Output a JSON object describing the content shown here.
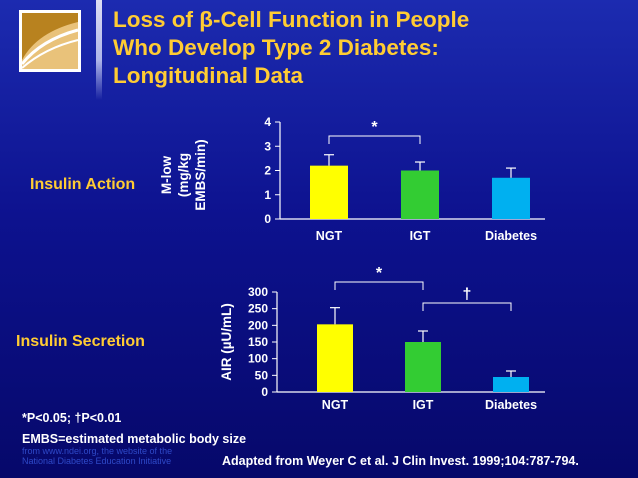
{
  "title": {
    "line1": "Loss of β-Cell Function in People",
    "line2": "Who Develop Type 2 Diabetes:",
    "line3": "Longitudinal Data"
  },
  "row_labels": {
    "action": "Insulin Action",
    "secretion": "Insulin Secretion"
  },
  "chart_data": [
    {
      "type": "bar",
      "categories": [
        "NGT",
        "IGT",
        "Diabetes"
      ],
      "values": [
        2.2,
        2.0,
        1.7
      ],
      "errors": [
        0.45,
        0.35,
        0.4
      ],
      "colors": [
        "#ffff00",
        "#33cc33",
        "#00b0f0"
      ],
      "ylabel": [
        "M-low",
        "(mg/kg",
        "EMBS/min)"
      ],
      "ylim": [
        0,
        4
      ],
      "yticks": [
        0,
        1,
        2,
        3,
        4
      ],
      "significance": [
        {
          "from": "NGT",
          "to": "IGT",
          "symbol": "*"
        }
      ]
    },
    {
      "type": "bar",
      "categories": [
        "NGT",
        "IGT",
        "Diabetes"
      ],
      "values": [
        203,
        150,
        45
      ],
      "errors": [
        50,
        33,
        18
      ],
      "colors": [
        "#ffff00",
        "#33cc33",
        "#00b0f0"
      ],
      "ylabel": [
        "AIR (µU/mL)"
      ],
      "ylim": [
        0,
        300
      ],
      "yticks": [
        0,
        50,
        100,
        150,
        200,
        250,
        300
      ],
      "significance": [
        {
          "from": "NGT",
          "to": "IGT",
          "symbol": "*"
        },
        {
          "from": "IGT",
          "to": "Diabetes",
          "symbol": "†"
        }
      ]
    }
  ],
  "footnotes": {
    "significance": "*P<0.05; †P<0.01",
    "embs": "EMBS=estimated metabolic body size"
  },
  "source": {
    "line1": "from www.ndei.org, the website of the",
    "line2": "National Diabetes Education Initiative"
  },
  "citation": "Adapted from Weyer C et al. J Clin Invest. 1999;104:787-794.",
  "colors": {
    "title": "#ffcc33",
    "background": "#0d128f"
  },
  "logo": "diabetes-education-logo"
}
